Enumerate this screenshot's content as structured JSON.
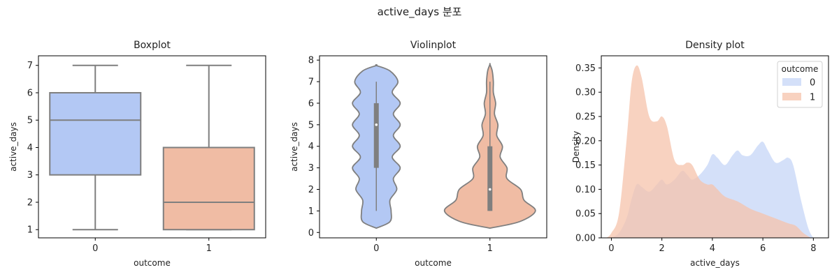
{
  "figure": {
    "title": "active_days 분포"
  },
  "colors": {
    "outcome_0": "#b3c8f4",
    "outcome_1": "#f0bca4",
    "density_0": "#c6d6f7",
    "density_1": "#f5c3ab",
    "line": "#7f7f7f"
  },
  "chart_data": [
    {
      "type": "box",
      "title": "Boxplot",
      "xlabel": "outcome",
      "ylabel": "active_days",
      "categories": [
        "0",
        "1"
      ],
      "ylim": [
        0.7,
        7.35
      ],
      "yticks": [
        1,
        2,
        3,
        4,
        5,
        6,
        7
      ],
      "boxes": [
        {
          "category": "0",
          "min": 1,
          "q1": 3,
          "median": 5,
          "q3": 6,
          "max": 7
        },
        {
          "category": "1",
          "min": 1,
          "q1": 1,
          "median": 2,
          "q3": 4,
          "max": 7
        }
      ]
    },
    {
      "type": "violin",
      "title": "Violinplot",
      "xlabel": "outcome",
      "ylabel": "active_days",
      "categories": [
        "0",
        "1"
      ],
      "ylim": [
        -0.25,
        8.2
      ],
      "yticks": [
        0,
        1,
        2,
        3,
        4,
        5,
        6,
        7,
        8
      ],
      "violins": [
        {
          "category": "0",
          "q1": 3,
          "median": 5,
          "q3": 6,
          "whisker_low": 1,
          "whisker_high": 7,
          "y": [
            0.2,
            0.5,
            1.0,
            1.5,
            2.0,
            2.5,
            3.0,
            3.5,
            4.0,
            4.5,
            5.0,
            5.5,
            6.0,
            6.5,
            7.0,
            7.5,
            7.75
          ],
          "width": [
            0.0,
            0.12,
            0.13,
            0.12,
            0.18,
            0.15,
            0.21,
            0.14,
            0.21,
            0.15,
            0.21,
            0.15,
            0.21,
            0.14,
            0.19,
            0.12,
            0.0
          ]
        },
        {
          "category": "1",
          "q1": 1,
          "median": 2,
          "q3": 4,
          "whisker_low": 1,
          "whisker_high": 7,
          "y": [
            0.2,
            0.5,
            1.0,
            1.5,
            2.0,
            2.5,
            3.0,
            3.5,
            4.0,
            4.5,
            5.0,
            5.5,
            6.0,
            6.5,
            7.0,
            7.5,
            7.8
          ],
          "width": [
            0.0,
            0.26,
            0.4,
            0.3,
            0.27,
            0.15,
            0.15,
            0.09,
            0.11,
            0.06,
            0.07,
            0.04,
            0.05,
            0.03,
            0.03,
            0.02,
            0.0
          ]
        }
      ]
    },
    {
      "type": "area",
      "title": "Density plot",
      "xlabel": "active_days",
      "ylabel": "Density",
      "xlim": [
        -0.4,
        8.6
      ],
      "ylim": [
        0.0,
        0.375
      ],
      "xticks": [
        0,
        2,
        4,
        6,
        8
      ],
      "yticks": [
        0.0,
        0.05,
        0.1,
        0.15,
        0.2,
        0.25,
        0.3,
        0.35
      ],
      "ytick_labels": [
        "0.00",
        "0.05",
        "0.10",
        "0.15",
        "0.20",
        "0.25",
        "0.30",
        "0.35"
      ],
      "legend": {
        "title": "outcome",
        "position": "upper-right",
        "entries": [
          "0",
          "1"
        ]
      },
      "series": [
        {
          "name": "0",
          "x": [
            0.0,
            0.3,
            0.6,
            0.8,
            1.0,
            1.2,
            1.5,
            1.8,
            2.0,
            2.2,
            2.5,
            2.8,
            3.0,
            3.2,
            3.5,
            3.8,
            4.0,
            4.2,
            4.5,
            4.8,
            5.0,
            5.2,
            5.5,
            5.8,
            6.0,
            6.2,
            6.5,
            6.8,
            7.0,
            7.2,
            7.5,
            7.8,
            8.0
          ],
          "y": [
            0.0,
            0.01,
            0.04,
            0.08,
            0.11,
            0.105,
            0.095,
            0.11,
            0.12,
            0.11,
            0.12,
            0.138,
            0.13,
            0.12,
            0.13,
            0.15,
            0.172,
            0.165,
            0.15,
            0.17,
            0.18,
            0.17,
            0.17,
            0.19,
            0.198,
            0.18,
            0.155,
            0.16,
            0.165,
            0.15,
            0.08,
            0.02,
            0.0
          ]
        },
        {
          "name": "1",
          "x": [
            -0.2,
            0.0,
            0.3,
            0.6,
            0.8,
            1.0,
            1.2,
            1.5,
            1.8,
            2.0,
            2.2,
            2.5,
            2.8,
            3.0,
            3.2,
            3.5,
            3.8,
            4.0,
            4.2,
            4.5,
            5.0,
            5.5,
            6.0,
            6.5,
            7.0,
            7.3,
            7.6,
            7.9
          ],
          "y": [
            0.0,
            0.01,
            0.05,
            0.2,
            0.32,
            0.355,
            0.33,
            0.25,
            0.24,
            0.25,
            0.23,
            0.16,
            0.15,
            0.155,
            0.15,
            0.12,
            0.11,
            0.11,
            0.1,
            0.085,
            0.075,
            0.06,
            0.05,
            0.04,
            0.03,
            0.025,
            0.01,
            0.0
          ]
        }
      ]
    }
  ]
}
